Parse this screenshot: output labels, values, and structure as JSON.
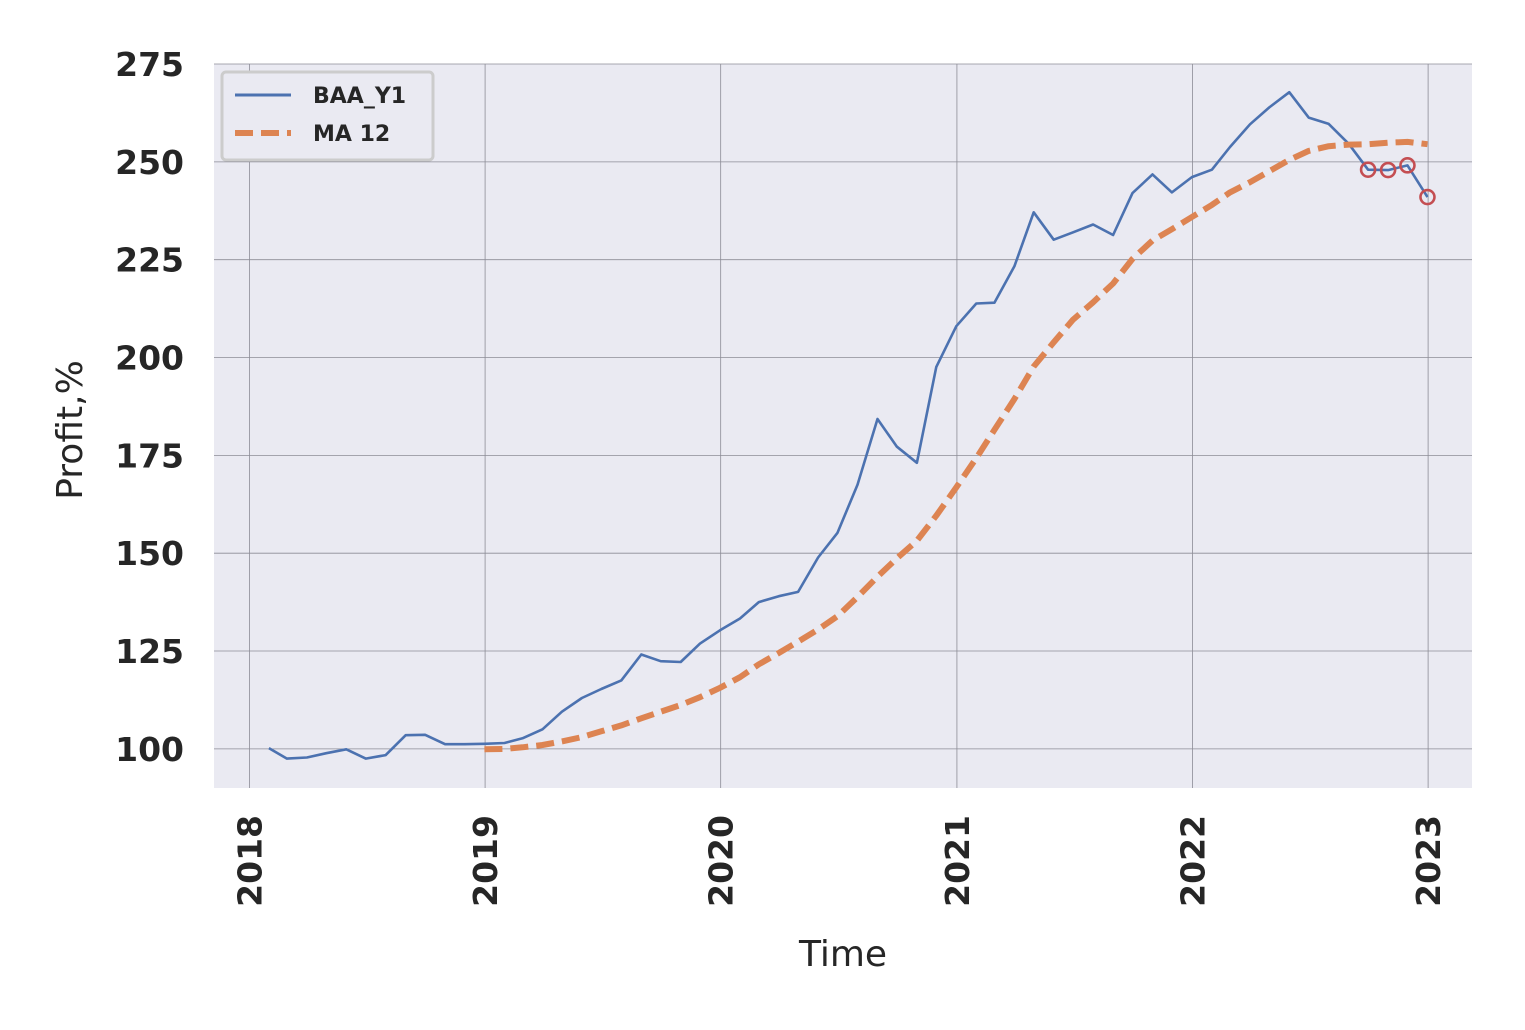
{
  "chart_data": {
    "type": "line",
    "xlabel": "Time",
    "ylabel": "Profit,%",
    "ylim": [
      90,
      275
    ],
    "xlim": [
      "2017-11-07",
      "2023-03-10"
    ],
    "yticks": [
      100,
      125,
      150,
      175,
      200,
      225,
      250,
      275
    ],
    "xticks": [
      "2018",
      "2019",
      "2020",
      "2021",
      "2022",
      "2023"
    ],
    "xtick_dates": [
      "2018-01-01",
      "2019-01-01",
      "2020-01-01",
      "2021-01-01",
      "2022-01-01",
      "2023-01-01"
    ],
    "grid": true,
    "legend_position": "upper-left",
    "colors": {
      "background": "#eaeaf2",
      "grid": "#8c8c96",
      "baa_y1": "#4c72b0",
      "ma12": "#dd8452",
      "markers": "#c44e52"
    },
    "series": [
      {
        "name": "BAA_Y1",
        "style": "solid",
        "x": [
          "2018-01-31",
          "2018-02-28",
          "2018-03-31",
          "2018-04-30",
          "2018-05-31",
          "2018-06-30",
          "2018-07-31",
          "2018-08-31",
          "2018-09-30",
          "2018-10-31",
          "2018-11-30",
          "2018-12-31",
          "2019-01-31",
          "2019-02-28",
          "2019-03-31",
          "2019-04-30",
          "2019-05-31",
          "2019-06-30",
          "2019-07-31",
          "2019-08-31",
          "2019-09-30",
          "2019-10-31",
          "2019-11-30",
          "2019-12-31",
          "2020-01-31",
          "2020-02-29",
          "2020-03-31",
          "2020-04-30",
          "2020-05-31",
          "2020-06-30",
          "2020-07-31",
          "2020-08-31",
          "2020-09-30",
          "2020-10-31",
          "2020-11-30",
          "2020-12-31",
          "2021-01-31",
          "2021-02-28",
          "2021-03-31",
          "2021-04-30",
          "2021-05-31",
          "2021-06-30",
          "2021-07-31",
          "2021-08-31",
          "2021-09-30",
          "2021-10-31",
          "2021-11-30",
          "2021-12-31",
          "2022-01-31",
          "2022-02-28",
          "2022-03-31",
          "2022-04-30",
          "2022-05-31",
          "2022-06-30",
          "2022-07-31",
          "2022-08-31",
          "2022-09-30",
          "2022-10-31",
          "2022-11-30",
          "2022-12-31"
        ],
        "values": [
          100.2,
          97.5,
          97.8,
          98.9,
          99.9,
          97.5,
          98.4,
          103.5,
          103.6,
          101.2,
          101.2,
          101.3,
          101.5,
          102.7,
          105.0,
          109.5,
          113.0,
          115.3,
          117.5,
          124.1,
          122.4,
          122.2,
          126.9,
          130.3,
          133.3,
          137.5,
          139.0,
          140.1,
          148.9,
          155.2,
          167.5,
          184.3,
          177.2,
          173.1,
          197.6,
          208.0,
          213.8,
          214.0,
          223.3,
          237.1,
          230.1,
          232.0,
          234.0,
          231.3,
          242.0,
          246.8,
          242.2,
          246.1,
          248.0,
          253.8,
          259.6,
          263.9,
          267.8,
          261.3,
          259.7,
          254.6,
          248.0,
          247.9,
          249.1,
          241.0
        ]
      },
      {
        "name": "MA 12",
        "style": "dashed",
        "x": [
          "2018-12-31",
          "2019-01-31",
          "2019-02-28",
          "2019-03-31",
          "2019-04-30",
          "2019-05-31",
          "2019-06-30",
          "2019-07-31",
          "2019-08-31",
          "2019-09-30",
          "2019-10-31",
          "2019-11-30",
          "2019-12-31",
          "2020-01-31",
          "2020-02-29",
          "2020-03-31",
          "2020-04-30",
          "2020-05-31",
          "2020-06-30",
          "2020-07-31",
          "2020-08-31",
          "2020-09-30",
          "2020-10-31",
          "2020-11-30",
          "2020-12-31",
          "2021-01-31",
          "2021-02-28",
          "2021-03-31",
          "2021-04-30",
          "2021-05-31",
          "2021-06-30",
          "2021-07-31",
          "2021-08-31",
          "2021-09-30",
          "2021-10-31",
          "2021-11-30",
          "2021-12-31",
          "2022-01-31",
          "2022-02-28",
          "2022-03-31",
          "2022-04-30",
          "2022-05-31",
          "2022-06-30",
          "2022-07-31",
          "2022-08-31",
          "2022-09-30",
          "2022-10-31",
          "2022-11-30",
          "2022-12-31"
        ],
        "values": [
          99.9,
          100.0,
          100.4,
          101.0,
          101.9,
          103.0,
          104.5,
          106.0,
          107.8,
          109.5,
          111.2,
          113.2,
          115.6,
          118.3,
          121.6,
          124.5,
          127.4,
          130.5,
          133.9,
          138.8,
          144.0,
          148.7,
          153.2,
          159.6,
          166.8,
          174.3,
          181.5,
          189.4,
          197.7,
          203.9,
          209.7,
          214.1,
          218.9,
          225.2,
          229.9,
          232.8,
          235.9,
          239.0,
          242.2,
          244.8,
          247.6,
          250.5,
          252.8,
          254.0,
          254.4,
          254.5,
          254.9,
          255.1,
          254.5
        ]
      }
    ],
    "highlight_points": {
      "x": [
        "2022-09-30",
        "2022-10-31",
        "2022-11-30",
        "2022-12-31"
      ],
      "values": [
        248.0,
        247.9,
        249.1,
        241.0
      ]
    }
  }
}
